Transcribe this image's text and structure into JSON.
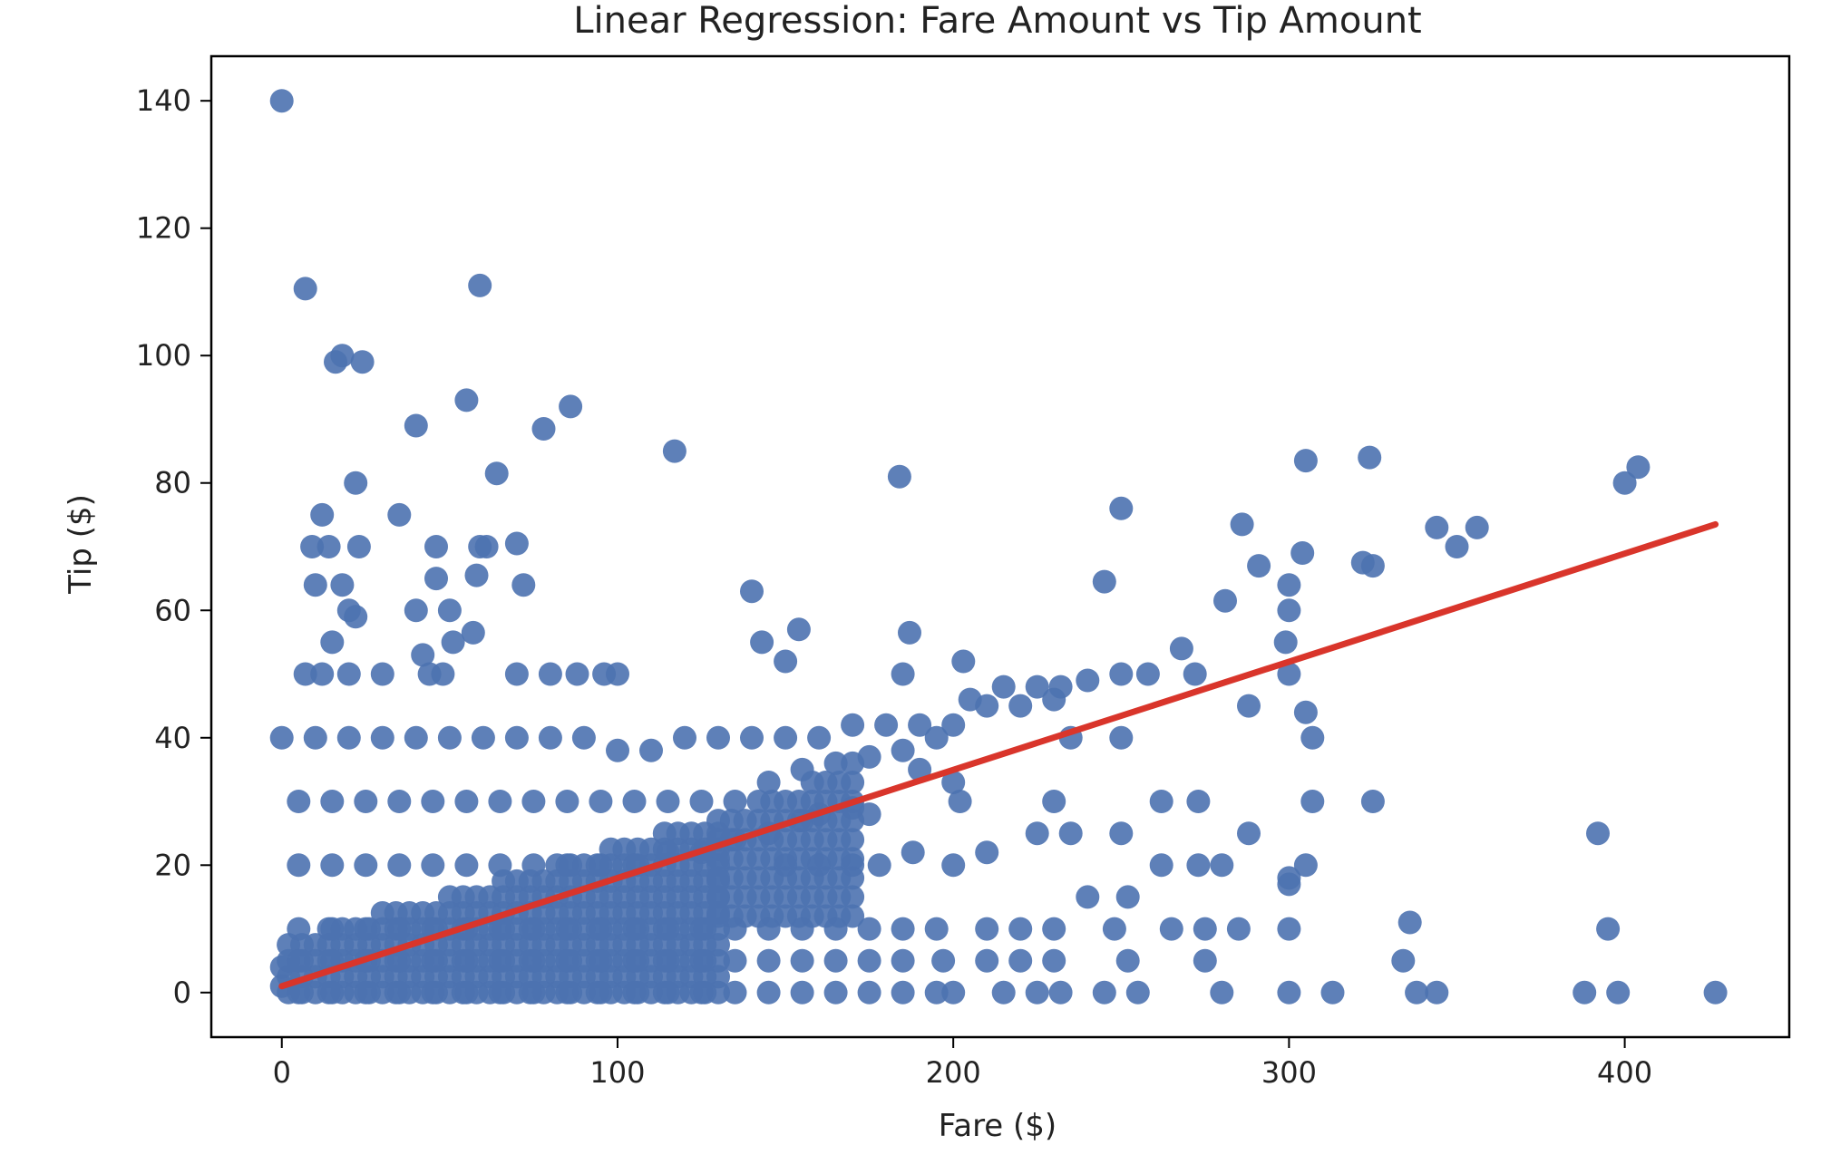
{
  "chart_data": {
    "type": "scatter",
    "title": "Linear Regression: Fare Amount vs Tip Amount",
    "xlabel": "Fare ($)",
    "ylabel": "Tip ($)",
    "xlim": [
      -21,
      449
    ],
    "ylim": [
      -7,
      147
    ],
    "xticks": [
      0,
      100,
      200,
      300,
      400
    ],
    "yticks": [
      0,
      20,
      40,
      60,
      80,
      100,
      120,
      140
    ],
    "xtick_labels": [
      "0",
      "100",
      "200",
      "300",
      "400"
    ],
    "ytick_labels": [
      "0",
      "20",
      "40",
      "60",
      "80",
      "100",
      "120",
      "140"
    ],
    "grid": false,
    "legend": "none",
    "marker_color": "#4c72b0",
    "line_color": "#d9352b",
    "regression_line": {
      "x": [
        0,
        427
      ],
      "y": [
        1.0,
        73.5
      ]
    },
    "series": [
      {
        "points": [
          [
            0,
            140
          ],
          [
            7,
            110.5
          ],
          [
            18,
            100
          ],
          [
            16,
            99
          ],
          [
            24,
            99
          ],
          [
            59,
            111
          ],
          [
            40,
            89
          ],
          [
            55,
            93
          ],
          [
            78,
            88.5
          ],
          [
            86,
            92
          ],
          [
            117,
            85
          ],
          [
            22,
            80
          ],
          [
            64,
            81.5
          ],
          [
            184,
            81
          ],
          [
            305,
            83.5
          ],
          [
            324,
            84
          ],
          [
            400,
            80
          ],
          [
            404,
            82.5
          ],
          [
            12,
            75
          ],
          [
            35,
            75
          ],
          [
            9,
            70
          ],
          [
            14,
            70
          ],
          [
            23,
            70
          ],
          [
            46,
            70
          ],
          [
            59,
            70
          ],
          [
            70,
            70.5
          ],
          [
            61,
            70
          ],
          [
            10,
            64
          ],
          [
            18,
            64
          ],
          [
            58,
            65.5
          ],
          [
            72,
            64
          ],
          [
            46,
            65
          ],
          [
            20,
            60
          ],
          [
            22,
            59
          ],
          [
            40,
            60
          ],
          [
            50,
            60
          ],
          [
            57,
            56.5
          ],
          [
            15,
            55
          ],
          [
            42,
            53
          ],
          [
            51,
            55
          ],
          [
            140,
            63
          ],
          [
            154,
            57
          ],
          [
            143,
            55
          ],
          [
            187,
            56.5
          ],
          [
            203,
            52
          ],
          [
            245,
            64.5
          ],
          [
            250,
            76
          ],
          [
            268,
            54
          ],
          [
            286,
            73.5
          ],
          [
            281,
            61.5
          ],
          [
            291,
            67
          ],
          [
            300,
            64
          ],
          [
            304,
            69
          ],
          [
            322,
            67.5
          ],
          [
            325,
            67
          ],
          [
            344,
            73
          ],
          [
            350,
            70
          ],
          [
            356,
            73
          ],
          [
            7,
            50
          ],
          [
            12,
            50
          ],
          [
            20,
            50
          ],
          [
            30,
            50
          ],
          [
            44,
            50
          ],
          [
            48,
            50
          ],
          [
            70,
            50
          ],
          [
            80,
            50
          ],
          [
            88,
            50
          ],
          [
            96,
            50
          ],
          [
            100,
            50
          ],
          [
            150,
            52
          ],
          [
            185,
            50
          ],
          [
            205,
            46
          ],
          [
            215,
            48
          ],
          [
            225,
            48
          ],
          [
            232,
            48
          ],
          [
            240,
            49
          ],
          [
            250,
            50
          ],
          [
            258,
            50
          ],
          [
            272,
            50
          ],
          [
            299,
            55
          ],
          [
            300,
            50
          ],
          [
            300,
            60
          ],
          [
            288,
            45
          ],
          [
            305,
            44
          ],
          [
            307,
            40
          ],
          [
            235,
            40
          ],
          [
            250,
            40
          ],
          [
            0,
            40
          ],
          [
            10,
            40
          ],
          [
            20,
            40
          ],
          [
            30,
            40
          ],
          [
            40,
            40
          ],
          [
            50,
            40
          ],
          [
            60,
            40
          ],
          [
            70,
            40
          ],
          [
            80,
            40
          ],
          [
            90,
            40
          ],
          [
            100,
            38
          ],
          [
            110,
            38
          ],
          [
            120,
            40
          ],
          [
            130,
            40
          ],
          [
            140,
            40
          ],
          [
            150,
            40
          ],
          [
            160,
            40
          ],
          [
            170,
            42
          ],
          [
            180,
            42
          ],
          [
            190,
            42
          ],
          [
            200,
            42
          ],
          [
            210,
            45
          ],
          [
            220,
            45
          ],
          [
            230,
            46
          ],
          [
            5,
            30
          ],
          [
            15,
            30
          ],
          [
            25,
            30
          ],
          [
            35,
            30
          ],
          [
            45,
            30
          ],
          [
            55,
            30
          ],
          [
            65,
            30
          ],
          [
            75,
            30
          ],
          [
            85,
            30
          ],
          [
            95,
            30
          ],
          [
            105,
            30
          ],
          [
            115,
            30
          ],
          [
            125,
            30
          ],
          [
            135,
            30
          ],
          [
            145,
            33
          ],
          [
            155,
            35
          ],
          [
            165,
            36
          ],
          [
            175,
            37
          ],
          [
            185,
            38
          ],
          [
            195,
            40
          ],
          [
            190,
            35
          ],
          [
            200,
            33
          ],
          [
            202,
            30
          ],
          [
            262,
            30
          ],
          [
            273,
            30
          ],
          [
            307,
            30
          ],
          [
            325,
            30
          ],
          [
            230,
            30
          ],
          [
            170,
            29
          ],
          [
            175,
            28
          ],
          [
            5,
            20
          ],
          [
            15,
            20
          ],
          [
            25,
            20
          ],
          [
            35,
            20
          ],
          [
            45,
            20
          ],
          [
            55,
            20
          ],
          [
            65,
            20
          ],
          [
            75,
            20
          ],
          [
            85,
            20
          ],
          [
            95,
            20
          ],
          [
            105,
            20
          ],
          [
            115,
            22
          ],
          [
            125,
            22
          ],
          [
            135,
            24
          ],
          [
            145,
            25
          ],
          [
            155,
            27
          ],
          [
            160,
            28
          ],
          [
            150,
            20
          ],
          [
            160,
            20
          ],
          [
            170,
            20
          ],
          [
            178,
            20
          ],
          [
            188,
            22
          ],
          [
            200,
            20
          ],
          [
            210,
            22
          ],
          [
            225,
            25
          ],
          [
            235,
            25
          ],
          [
            250,
            25
          ],
          [
            252,
            15
          ],
          [
            262,
            20
          ],
          [
            273,
            20
          ],
          [
            280,
            20
          ],
          [
            288,
            25
          ],
          [
            300,
            17
          ],
          [
            300,
            18
          ],
          [
            305,
            20
          ],
          [
            392,
            25
          ],
          [
            5,
            10
          ],
          [
            15,
            10
          ],
          [
            25,
            10
          ],
          [
            35,
            10
          ],
          [
            45,
            10
          ],
          [
            55,
            10
          ],
          [
            65,
            10
          ],
          [
            75,
            10
          ],
          [
            85,
            10
          ],
          [
            95,
            10
          ],
          [
            105,
            10
          ],
          [
            115,
            10
          ],
          [
            125,
            10
          ],
          [
            135,
            10
          ],
          [
            145,
            10
          ],
          [
            155,
            10
          ],
          [
            165,
            10
          ],
          [
            175,
            10
          ],
          [
            185,
            10
          ],
          [
            195,
            10
          ],
          [
            210,
            10
          ],
          [
            220,
            10
          ],
          [
            230,
            10
          ],
          [
            240,
            15
          ],
          [
            248,
            10
          ],
          [
            265,
            10
          ],
          [
            275,
            10
          ],
          [
            285,
            10
          ],
          [
            300,
            10
          ],
          [
            336,
            11
          ],
          [
            334,
            5
          ],
          [
            395,
            10
          ],
          [
            5,
            5
          ],
          [
            15,
            5
          ],
          [
            25,
            5
          ],
          [
            35,
            5
          ],
          [
            45,
            5
          ],
          [
            55,
            5
          ],
          [
            65,
            5
          ],
          [
            75,
            5
          ],
          [
            85,
            5
          ],
          [
            95,
            5
          ],
          [
            105,
            5
          ],
          [
            115,
            5
          ],
          [
            125,
            5
          ],
          [
            135,
            5
          ],
          [
            145,
            5
          ],
          [
            155,
            5
          ],
          [
            165,
            5
          ],
          [
            175,
            5
          ],
          [
            185,
            5
          ],
          [
            197,
            5
          ],
          [
            210,
            5
          ],
          [
            220,
            5
          ],
          [
            230,
            5
          ],
          [
            252,
            5
          ],
          [
            275,
            5
          ],
          [
            0,
            4
          ],
          [
            0,
            1
          ],
          [
            5,
            0
          ],
          [
            15,
            0
          ],
          [
            25,
            0
          ],
          [
            35,
            0
          ],
          [
            45,
            0
          ],
          [
            55,
            0
          ],
          [
            65,
            0
          ],
          [
            75,
            0
          ],
          [
            85,
            0
          ],
          [
            95,
            0
          ],
          [
            105,
            0
          ],
          [
            115,
            0
          ],
          [
            125,
            0
          ],
          [
            135,
            0
          ],
          [
            145,
            0
          ],
          [
            155,
            0
          ],
          [
            165,
            0
          ],
          [
            175,
            0
          ],
          [
            185,
            0
          ],
          [
            195,
            0
          ],
          [
            200,
            0
          ],
          [
            215,
            0
          ],
          [
            225,
            0
          ],
          [
            232,
            0
          ],
          [
            245,
            0
          ],
          [
            255,
            0
          ],
          [
            280,
            0
          ],
          [
            300,
            0
          ],
          [
            313,
            0
          ],
          [
            338,
            0
          ],
          [
            344,
            0
          ],
          [
            388,
            0
          ],
          [
            398,
            0
          ],
          [
            427,
            0
          ]
        ]
      }
    ]
  }
}
